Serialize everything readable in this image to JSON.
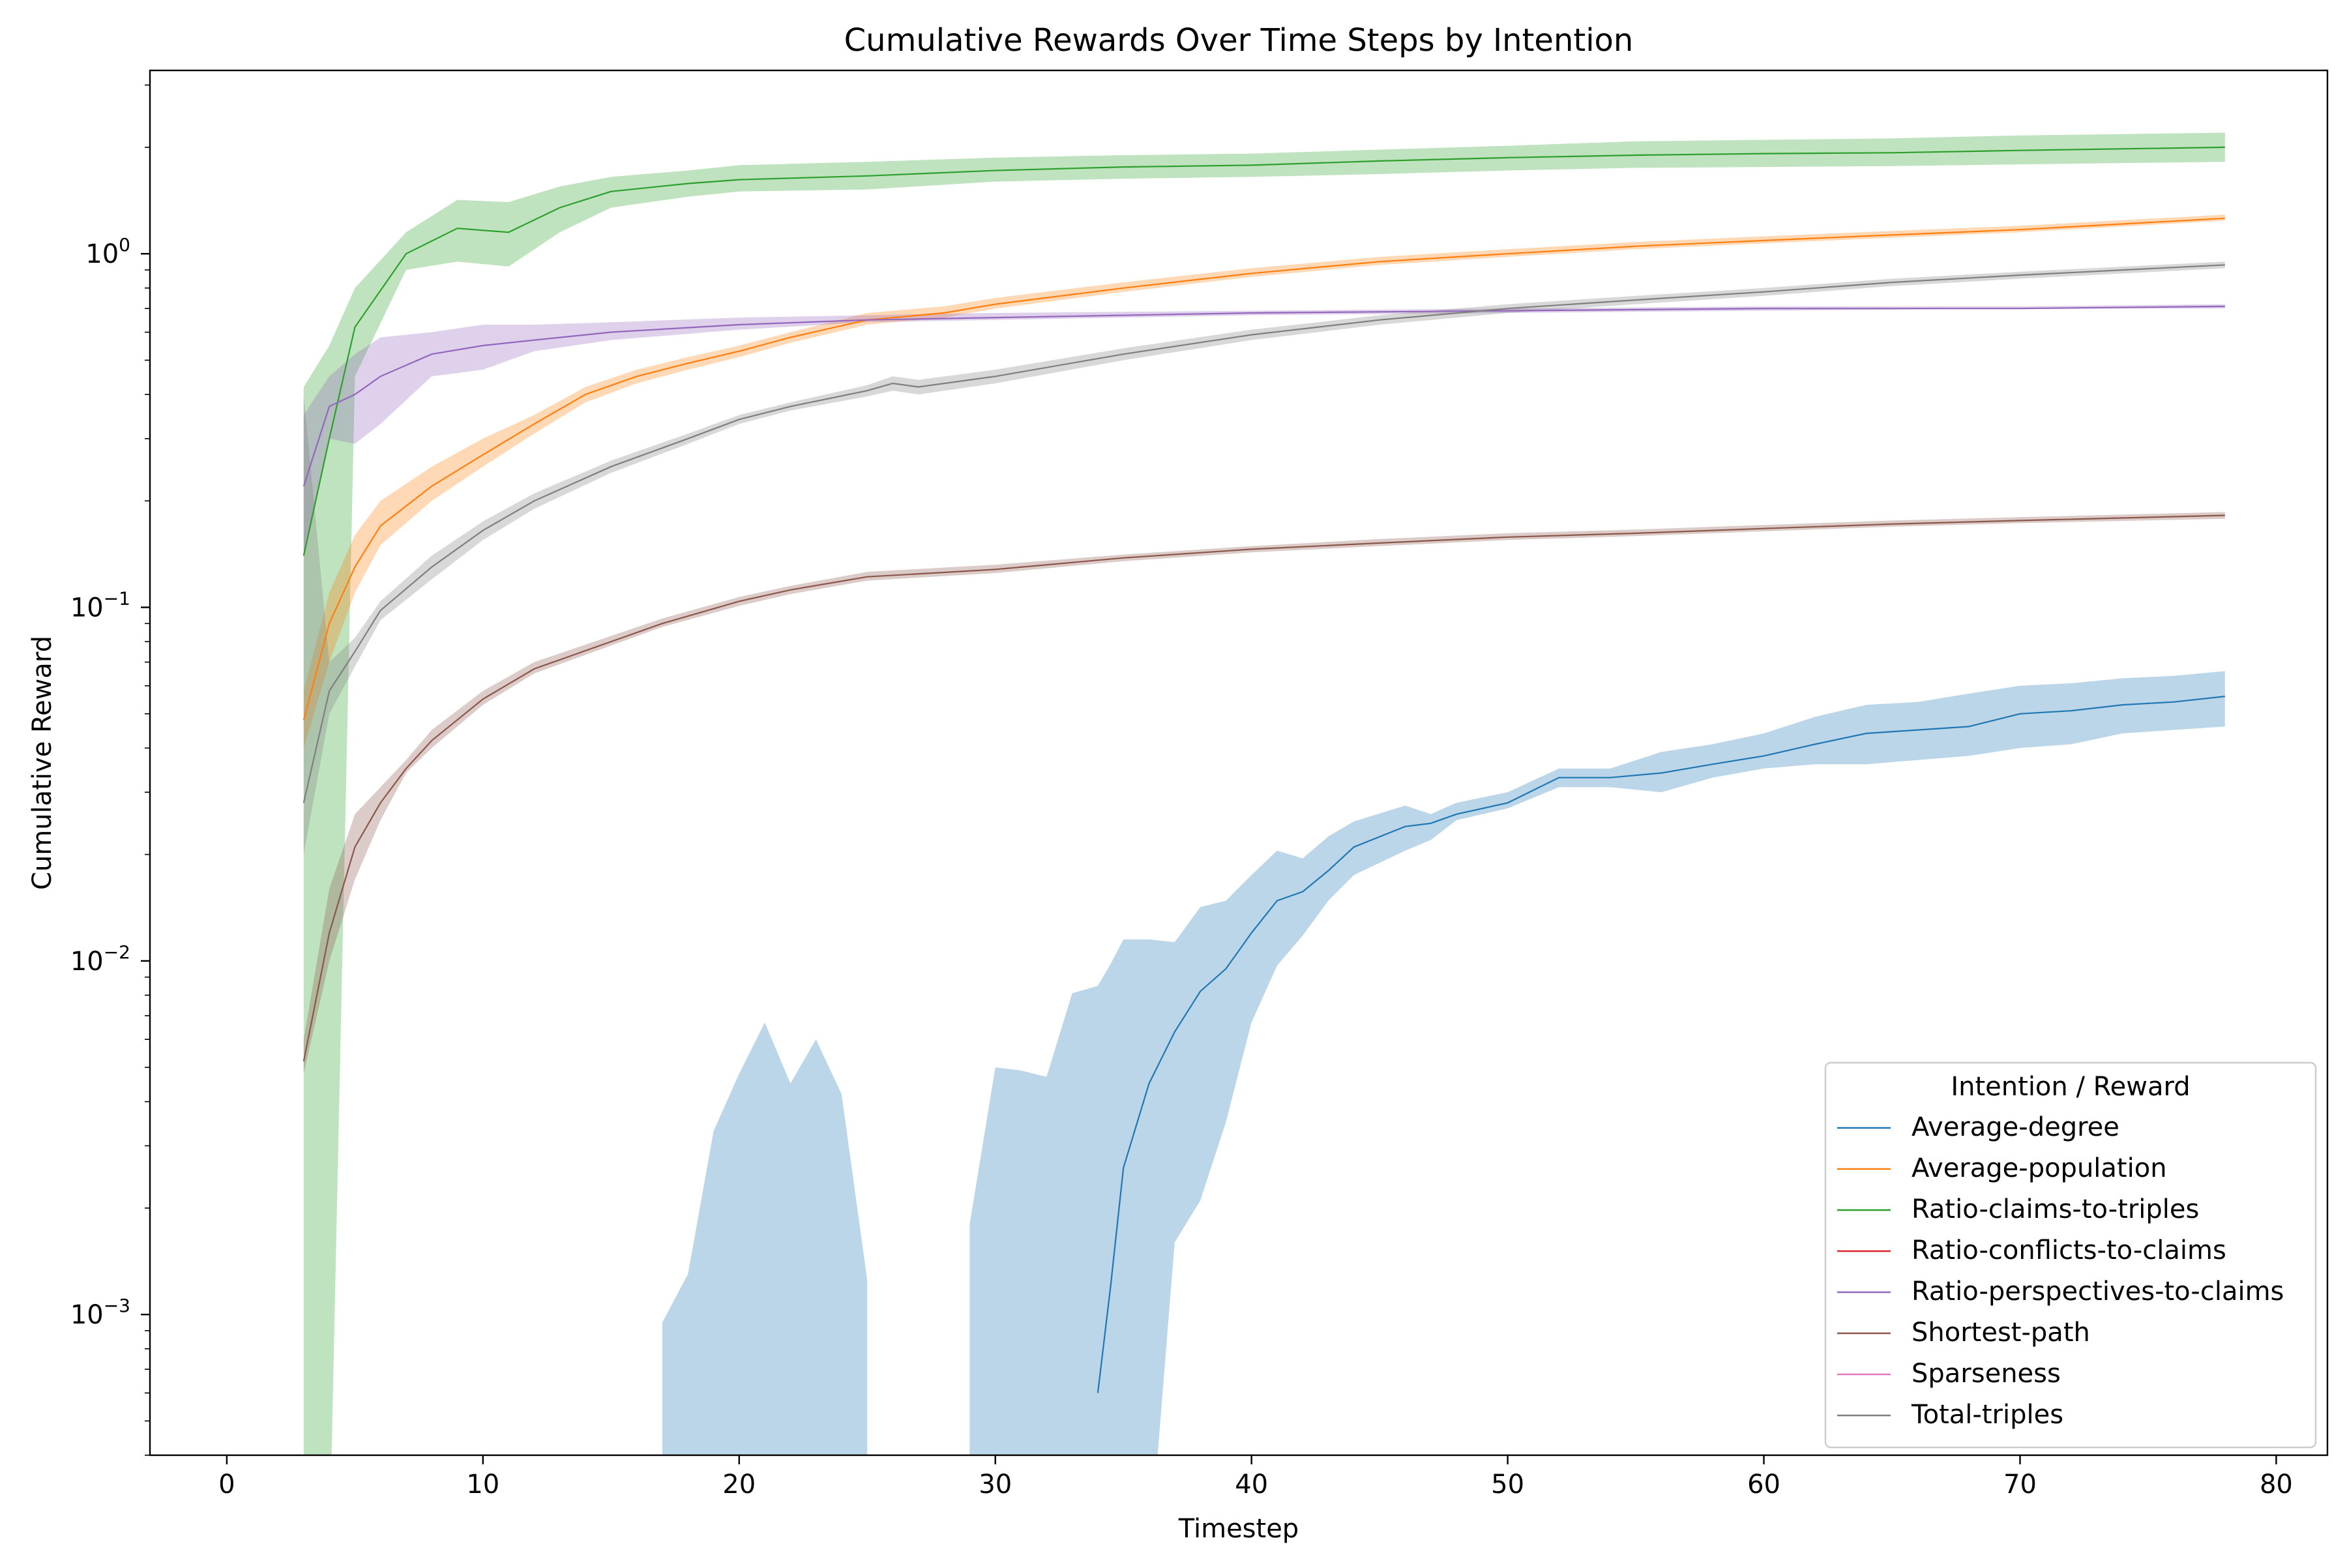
{
  "chart_data": {
    "type": "line",
    "title": "Cumulative Rewards Over Time Steps by Intention",
    "xlabel": "Timestep",
    "ylabel": "Cumulative Reward",
    "xlim": [
      -3,
      82
    ],
    "ylim": [
      0.0004,
      3.3
    ],
    "yscale": "log",
    "grid": false,
    "x_ticks": [
      0,
      10,
      20,
      30,
      40,
      50,
      60,
      70,
      80
    ],
    "x_tick_labels": [
      "0",
      "10",
      "20",
      "30",
      "40",
      "50",
      "60",
      "70",
      "80"
    ],
    "y_ticks": [
      0.001,
      0.01,
      0.1,
      1
    ],
    "y_tick_labels": [
      {
        "base": "10",
        "exp": "−3"
      },
      {
        "base": "10",
        "exp": "−2"
      },
      {
        "base": "10",
        "exp": "−1"
      },
      {
        "base": "10",
        "exp": "0"
      }
    ],
    "legend": {
      "title": "Intention / Reward",
      "placement": "lower-right",
      "entries": [
        {
          "label": "Average-degree",
          "color": "#1f77b4"
        },
        {
          "label": "Average-population",
          "color": "#ff7f0e"
        },
        {
          "label": "Ratio-claims-to-triples",
          "color": "#2ca02c"
        },
        {
          "label": "Ratio-conflicts-to-claims",
          "color": "#d62728"
        },
        {
          "label": "Ratio-perspectives-to-claims",
          "color": "#9467bd"
        },
        {
          "label": "Shortest-path",
          "color": "#8c564b"
        },
        {
          "label": "Sparseness",
          "color": "#e377c2"
        },
        {
          "label": "Total-triples",
          "color": "#7f7f7f"
        }
      ]
    },
    "series": [
      {
        "name": "Ratio-claims-to-triples",
        "color": "#2ca02c",
        "x": [
          3,
          4,
          5,
          7,
          9,
          11,
          13,
          15,
          18,
          20,
          25,
          30,
          35,
          40,
          45,
          50,
          55,
          60,
          65,
          70,
          78
        ],
        "y": [
          0.14,
          0.3,
          0.62,
          1.0,
          1.18,
          1.15,
          1.35,
          1.5,
          1.58,
          1.62,
          1.66,
          1.72,
          1.76,
          1.78,
          1.83,
          1.87,
          1.9,
          1.92,
          1.93,
          1.96,
          2.0
        ],
        "lower": [
          0.0002,
          0.0002,
          0.45,
          0.9,
          0.95,
          0.92,
          1.15,
          1.35,
          1.45,
          1.5,
          1.52,
          1.6,
          1.63,
          1.65,
          1.68,
          1.72,
          1.75,
          1.76,
          1.77,
          1.79,
          1.82
        ],
        "upper": [
          0.42,
          0.55,
          0.8,
          1.15,
          1.42,
          1.4,
          1.55,
          1.65,
          1.72,
          1.78,
          1.82,
          1.87,
          1.9,
          1.92,
          1.97,
          2.02,
          2.08,
          2.1,
          2.12,
          2.16,
          2.2
        ]
      },
      {
        "name": "Average-population",
        "color": "#ff7f0e",
        "x": [
          3,
          4,
          5,
          6,
          8,
          10,
          12,
          14,
          16,
          18,
          20,
          22,
          25,
          28,
          30,
          35,
          40,
          45,
          50,
          55,
          60,
          65,
          70,
          78
        ],
        "y": [
          0.048,
          0.09,
          0.13,
          0.17,
          0.22,
          0.27,
          0.33,
          0.4,
          0.45,
          0.49,
          0.53,
          0.58,
          0.65,
          0.68,
          0.72,
          0.8,
          0.88,
          0.95,
          1.0,
          1.05,
          1.09,
          1.13,
          1.17,
          1.26
        ],
        "lower": [
          0.04,
          0.07,
          0.11,
          0.15,
          0.2,
          0.25,
          0.31,
          0.38,
          0.43,
          0.47,
          0.51,
          0.56,
          0.63,
          0.66,
          0.7,
          0.78,
          0.86,
          0.93,
          0.98,
          1.03,
          1.07,
          1.11,
          1.15,
          1.24
        ],
        "upper": [
          0.058,
          0.11,
          0.16,
          0.2,
          0.25,
          0.3,
          0.35,
          0.42,
          0.47,
          0.51,
          0.55,
          0.6,
          0.68,
          0.71,
          0.75,
          0.83,
          0.91,
          0.98,
          1.03,
          1.08,
          1.12,
          1.16,
          1.2,
          1.29
        ]
      },
      {
        "name": "Ratio-perspectives-to-claims",
        "color": "#9467bd",
        "x": [
          3,
          4,
          5,
          6,
          8,
          10,
          12,
          15,
          20,
          25,
          30,
          40,
          50,
          60,
          70,
          78
        ],
        "y": [
          0.22,
          0.37,
          0.4,
          0.45,
          0.52,
          0.55,
          0.57,
          0.6,
          0.63,
          0.65,
          0.66,
          0.68,
          0.69,
          0.7,
          0.7,
          0.71
        ],
        "lower": [
          0.14,
          0.3,
          0.29,
          0.33,
          0.45,
          0.47,
          0.53,
          0.57,
          0.61,
          0.64,
          0.65,
          0.67,
          0.68,
          0.69,
          0.7,
          0.7
        ],
        "upper": [
          0.35,
          0.45,
          0.52,
          0.58,
          0.6,
          0.63,
          0.63,
          0.64,
          0.66,
          0.67,
          0.68,
          0.69,
          0.7,
          0.71,
          0.71,
          0.72
        ]
      },
      {
        "name": "Total-triples",
        "color": "#7f7f7f",
        "x": [
          3,
          4,
          5,
          6,
          8,
          10,
          12,
          15,
          18,
          20,
          22,
          25,
          26,
          27,
          30,
          35,
          40,
          45,
          50,
          55,
          60,
          65,
          70,
          78
        ],
        "y": [
          0.028,
          0.058,
          0.075,
          0.098,
          0.13,
          0.165,
          0.2,
          0.25,
          0.3,
          0.34,
          0.37,
          0.41,
          0.43,
          0.42,
          0.45,
          0.52,
          0.59,
          0.65,
          0.7,
          0.74,
          0.78,
          0.83,
          0.87,
          0.93
        ],
        "lower": [
          0.02,
          0.05,
          0.068,
          0.092,
          0.12,
          0.155,
          0.19,
          0.24,
          0.29,
          0.33,
          0.36,
          0.395,
          0.41,
          0.4,
          0.43,
          0.5,
          0.57,
          0.63,
          0.68,
          0.72,
          0.76,
          0.81,
          0.85,
          0.91
        ],
        "upper": [
          0.4,
          0.07,
          0.082,
          0.104,
          0.14,
          0.175,
          0.21,
          0.26,
          0.31,
          0.35,
          0.38,
          0.425,
          0.45,
          0.44,
          0.47,
          0.54,
          0.61,
          0.67,
          0.72,
          0.76,
          0.8,
          0.85,
          0.89,
          0.95
        ]
      },
      {
        "name": "Shortest-path",
        "color": "#8c564b",
        "x": [
          3,
          4,
          5,
          6,
          7,
          8,
          10,
          12,
          15,
          17,
          20,
          22,
          25,
          30,
          35,
          40,
          45,
          50,
          55,
          60,
          65,
          70,
          78
        ],
        "y": [
          0.0052,
          0.012,
          0.021,
          0.028,
          0.035,
          0.042,
          0.055,
          0.067,
          0.08,
          0.09,
          0.104,
          0.112,
          0.122,
          0.128,
          0.138,
          0.146,
          0.152,
          0.158,
          0.162,
          0.167,
          0.172,
          0.176,
          0.182
        ],
        "lower": [
          0.0048,
          0.01,
          0.017,
          0.025,
          0.034,
          0.04,
          0.053,
          0.065,
          0.078,
          0.088,
          0.101,
          0.109,
          0.119,
          0.125,
          0.135,
          0.143,
          0.149,
          0.155,
          0.159,
          0.164,
          0.169,
          0.173,
          0.178
        ],
        "upper": [
          0.006,
          0.016,
          0.026,
          0.031,
          0.037,
          0.045,
          0.058,
          0.07,
          0.083,
          0.093,
          0.107,
          0.115,
          0.126,
          0.132,
          0.141,
          0.149,
          0.156,
          0.162,
          0.166,
          0.171,
          0.176,
          0.18,
          0.186
        ]
      },
      {
        "name": "Average-degree",
        "color": "#1f77b4",
        "x": [
          34,
          34.5,
          35,
          36,
          37,
          38,
          39,
          40,
          41,
          42,
          43,
          44,
          46,
          47,
          48,
          50,
          52,
          54,
          56,
          58,
          60,
          62,
          64,
          66,
          68,
          70,
          72,
          74,
          76,
          78
        ],
        "y": [
          0.0006,
          0.0012,
          0.0026,
          0.0045,
          0.0063,
          0.0082,
          0.0095,
          0.012,
          0.0148,
          0.0157,
          0.018,
          0.021,
          0.024,
          0.0245,
          0.026,
          0.028,
          0.033,
          0.033,
          0.034,
          0.036,
          0.038,
          0.041,
          0.044,
          0.045,
          0.046,
          0.05,
          0.051,
          0.053,
          0.054,
          0.056
        ],
        "lower": [
          0.0002,
          0.0002,
          0.0002,
          0.0002,
          0.0016,
          0.0021,
          0.0035,
          0.0067,
          0.0097,
          0.0118,
          0.0148,
          0.0175,
          0.0205,
          0.022,
          0.025,
          0.027,
          0.031,
          0.031,
          0.03,
          0.033,
          0.035,
          0.036,
          0.036,
          0.037,
          0.038,
          0.04,
          0.041,
          0.044,
          0.045,
          0.046
        ],
        "upper": [
          0.0085,
          0.0098,
          0.0115,
          0.0115,
          0.0113,
          0.0142,
          0.0148,
          0.0175,
          0.0205,
          0.0195,
          0.0225,
          0.0248,
          0.0275,
          0.026,
          0.028,
          0.03,
          0.035,
          0.035,
          0.039,
          0.041,
          0.044,
          0.049,
          0.053,
          0.054,
          0.057,
          0.06,
          0.061,
          0.063,
          0.064,
          0.066
        ]
      }
    ],
    "uncertainty_bands": [
      {
        "series": "Average-degree",
        "color": "#1f77b4",
        "x": [
          17,
          18,
          19,
          20,
          21,
          22,
          23,
          24,
          25
        ],
        "lower": [
          0.0002,
          0.0002,
          0.0002,
          0.0002,
          0.0002,
          0.0002,
          0.0002,
          0.0002,
          0.0002
        ],
        "upper": [
          0.00095,
          0.0013,
          0.0033,
          0.0048,
          0.0067,
          0.0045,
          0.006,
          0.0042,
          0.00125
        ]
      },
      {
        "series": "Average-degree",
        "color": "#1f77b4",
        "x": [
          29,
          30,
          31,
          32,
          33,
          34
        ],
        "lower": [
          0.0002,
          0.0002,
          0.0002,
          0.0002,
          0.0002,
          0.0002
        ],
        "upper": [
          0.0018,
          0.005,
          0.0049,
          0.0047,
          0.0081,
          0.0085
        ]
      }
    ]
  }
}
